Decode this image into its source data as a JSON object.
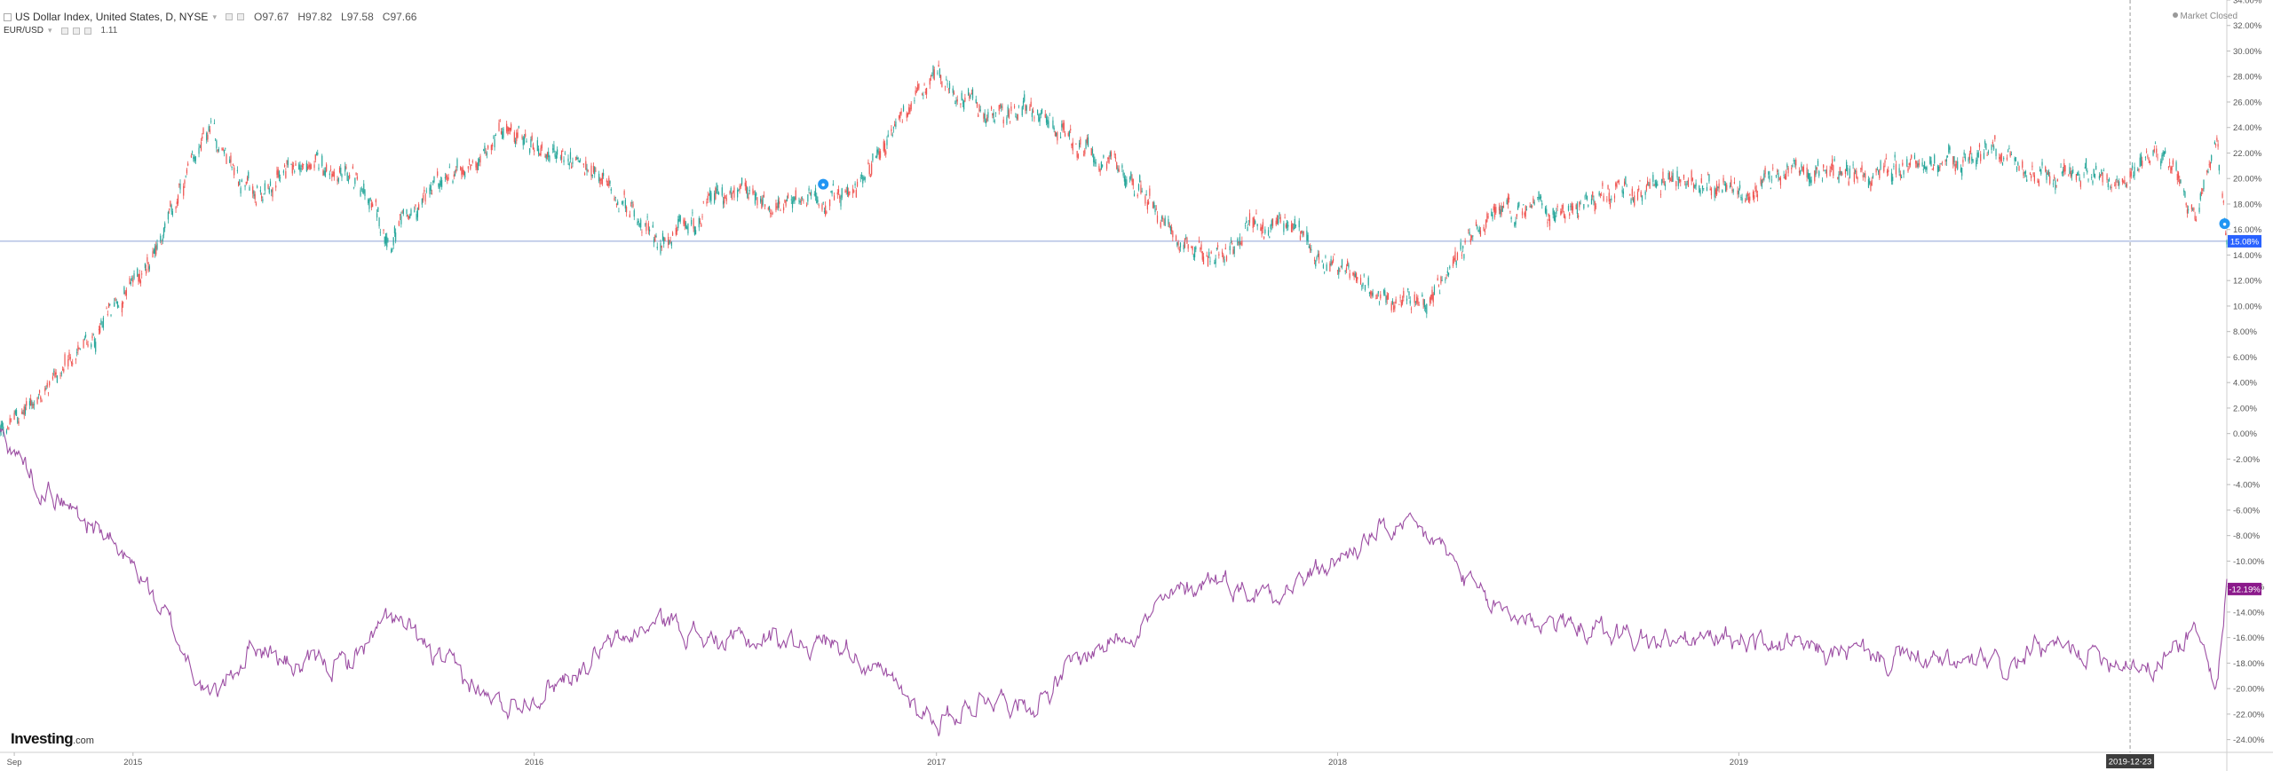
{
  "header": {
    "main_symbol_label": "US Dollar Index, United States, D, NYSE",
    "ohlc": [
      {
        "key": "O",
        "value": "97.67"
      },
      {
        "key": "H",
        "value": "97.82"
      },
      {
        "key": "L",
        "value": "97.58"
      },
      {
        "key": "C",
        "value": "97.66"
      }
    ],
    "compare_symbol_label": "EUR/USD",
    "compare_value": "1.11",
    "market_status": "Market Closed"
  },
  "branding": {
    "logo_main": "Investing",
    "logo_suffix": ".com"
  },
  "crosshair": {
    "date_label": "2019-12-23"
  },
  "colors": {
    "up_candle": "#26a69a",
    "down_candle": "#ef5350",
    "eurusd_line": "#9c4ea3",
    "price_line": "#8fa4d8",
    "last_price_badge": "#2962ff",
    "eurusd_badge": "#8b1a8b",
    "event_marker": "#2196f3"
  },
  "chart_data": {
    "type": "line",
    "xlabel": "",
    "ylabel": "",
    "x_tick_labels": [
      "Sep",
      "2015",
      "2016",
      "2017",
      "2018",
      "2019"
    ],
    "y_tick_labels": [
      "34.00%",
      "32.00%",
      "30.00%",
      "28.00%",
      "26.00%",
      "24.00%",
      "22.00%",
      "20.00%",
      "18.00%",
      "16.00%",
      "14.00%",
      "12.00%",
      "10.00%",
      "8.00%",
      "6.00%",
      "4.00%",
      "2.00%",
      "0.00%",
      "-2.00%",
      "-4.00%",
      "-6.00%",
      "-8.00%",
      "-10.00%",
      "-12.00%",
      "-14.00%",
      "-16.00%",
      "-18.00%",
      "-20.00%",
      "-22.00%",
      "-24.00%"
    ],
    "ylim": [
      -25,
      34
    ],
    "x_range": [
      "2014-09-02",
      "2020-03-20"
    ],
    "price_line_value": 15.08,
    "series": [
      {
        "name": "US Dollar Index",
        "style": "candlestick",
        "last_label": "15.08%",
        "x": [
          "2014-09-02",
          "2014-10-15",
          "2014-12-01",
          "2015-01-15",
          "2015-03-13",
          "2015-04-20",
          "2015-06-01",
          "2015-07-15",
          "2015-08-24",
          "2015-10-15",
          "2015-12-02",
          "2016-01-20",
          "2016-03-15",
          "2016-05-03",
          "2016-06-15",
          "2016-08-15",
          "2016-10-15",
          "2016-11-15",
          "2017-01-03",
          "2017-02-15",
          "2017-04-01",
          "2017-05-15",
          "2017-07-01",
          "2017-09-08",
          "2017-10-15",
          "2017-12-01",
          "2018-02-15",
          "2018-04-01",
          "2018-05-15",
          "2018-07-01",
          "2018-09-01",
          "2018-11-01",
          "2019-01-01",
          "2019-03-01",
          "2019-05-01",
          "2019-07-01",
          "2019-09-01",
          "2019-10-01",
          "2019-12-23",
          "2020-01-15",
          "2020-02-20",
          "2020-03-10",
          "2020-03-20"
        ],
        "values": [
          0.0,
          3.5,
          8.0,
          13.5,
          23.8,
          18.5,
          21.0,
          20.5,
          15.5,
          20.0,
          23.5,
          22.0,
          19.0,
          14.5,
          18.5,
          18.0,
          18.5,
          23.0,
          27.8,
          25.0,
          25.5,
          22.0,
          19.5,
          13.5,
          16.5,
          15.5,
          10.0,
          11.0,
          16.5,
          17.5,
          18.5,
          20.0,
          19.5,
          20.5,
          20.5,
          21.5,
          22.0,
          20.5,
          20.0,
          22.5,
          17.5,
          24.0,
          15.08
        ]
      },
      {
        "name": "EUR/USD",
        "style": "line",
        "last_label": "-12.19%",
        "x": [
          "2014-09-02",
          "2014-10-15",
          "2014-12-01",
          "2015-01-15",
          "2015-03-13",
          "2015-04-20",
          "2015-06-01",
          "2015-07-15",
          "2015-08-24",
          "2015-10-15",
          "2015-12-02",
          "2016-01-20",
          "2016-03-15",
          "2016-05-03",
          "2016-06-15",
          "2016-08-15",
          "2016-10-15",
          "2016-11-15",
          "2017-01-03",
          "2017-02-15",
          "2017-04-01",
          "2017-05-15",
          "2017-07-01",
          "2017-09-08",
          "2017-10-15",
          "2017-12-01",
          "2018-02-15",
          "2018-04-01",
          "2018-05-15",
          "2018-07-01",
          "2018-09-01",
          "2018-11-01",
          "2019-01-01",
          "2019-03-01",
          "2019-05-01",
          "2019-07-01",
          "2019-09-01",
          "2019-10-01",
          "2019-12-23",
          "2020-01-15",
          "2020-02-20",
          "2020-03-10",
          "2020-03-20"
        ],
        "values": [
          0.0,
          -4.5,
          -7.5,
          -12.0,
          -21.0,
          -16.5,
          -18.5,
          -18.0,
          -14.5,
          -18.5,
          -21.5,
          -19.5,
          -16.5,
          -14.5,
          -16.5,
          -16.0,
          -16.5,
          -19.5,
          -22.5,
          -20.5,
          -21.0,
          -17.5,
          -15.0,
          -11.0,
          -12.5,
          -11.5,
          -7.5,
          -8.5,
          -13.5,
          -14.5,
          -15.5,
          -16.5,
          -16.0,
          -17.0,
          -17.5,
          -18.0,
          -18.5,
          -17.0,
          -17.5,
          -18.5,
          -15.0,
          -20.0,
          -12.19
        ]
      }
    ]
  }
}
